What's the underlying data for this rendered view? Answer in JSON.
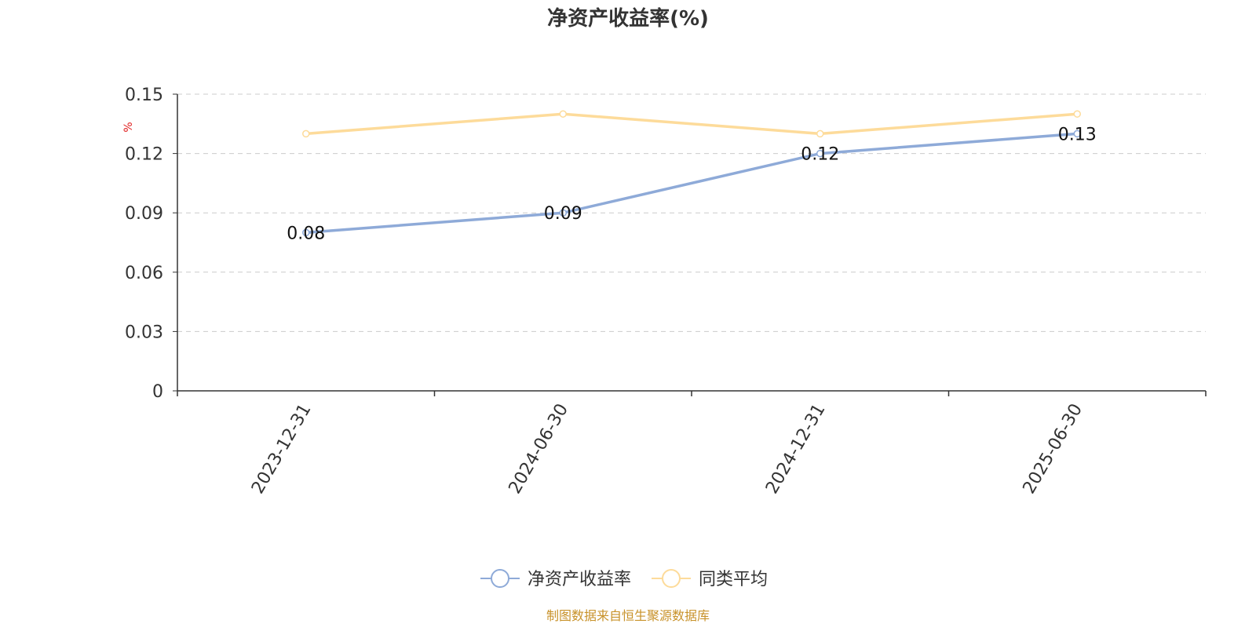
{
  "chart_data": {
    "type": "line",
    "title": "净资产收益率(%)",
    "ylabel": "%",
    "xlabel": "",
    "categories": [
      "2023-12-31",
      "2024-06-30",
      "2024-12-31",
      "2025-06-30"
    ],
    "ylim": [
      0,
      0.15
    ],
    "yticks": [
      0,
      0.03,
      0.06,
      0.09,
      0.12,
      0.15
    ],
    "ytick_labels": [
      "0",
      "0.03",
      "0.06",
      "0.09",
      "0.12",
      "0.15"
    ],
    "grid": true,
    "legend_position": "bottom-center",
    "series": [
      {
        "name": "净资产收益率",
        "values": [
          0.08,
          0.09,
          0.12,
          0.13
        ],
        "labels": [
          "0.08",
          "0.09",
          "0.12",
          "0.13"
        ],
        "color": "#8eaad8",
        "show_labels": true
      },
      {
        "name": "同类平均",
        "values": [
          0.13,
          0.14,
          0.13,
          0.14
        ],
        "color": "#fddb9a",
        "show_labels": false
      }
    ]
  },
  "source_note": "制图数据来自恒生聚源数据库",
  "colors": {
    "title": "#333333",
    "axis": "#333333",
    "grid": "#cccccc",
    "ylabel": "#e02020",
    "source_note": "#c8922a"
  }
}
